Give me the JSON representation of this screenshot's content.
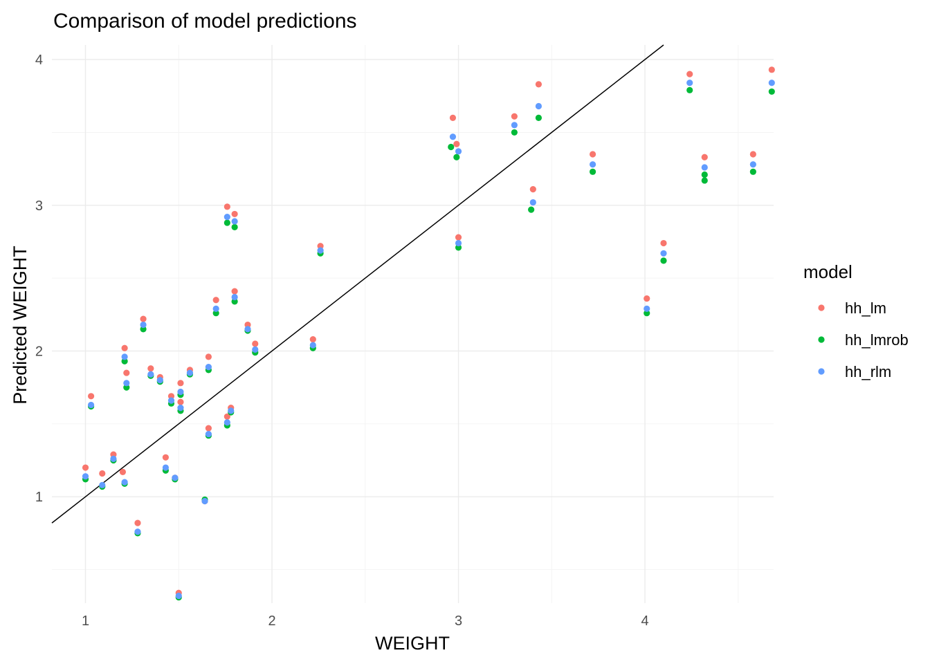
{
  "chart_data": {
    "type": "scatter",
    "title": "Comparison of model predictions",
    "xlabel": "WEIGHT",
    "ylabel": "Predicted WEIGHT",
    "xlim": [
      0.82,
      4.69
    ],
    "ylim": [
      0.27,
      4.1
    ],
    "x_ticks": [
      1,
      2,
      3,
      4
    ],
    "y_ticks": [
      1,
      2,
      3,
      4
    ],
    "grid": true,
    "legend": {
      "title": "model",
      "position": "right"
    },
    "reference_line": {
      "type": "abline",
      "intercept": 0,
      "slope": 1,
      "color": "#000000"
    },
    "series": [
      {
        "name": "hh_lm",
        "color": "#F8766D",
        "points": [
          [
            1.0,
            1.2
          ],
          [
            1.03,
            1.69
          ],
          [
            1.09,
            1.16
          ],
          [
            1.15,
            1.29
          ],
          [
            1.2,
            1.17
          ],
          [
            1.21,
            2.02
          ],
          [
            1.22,
            1.85
          ],
          [
            1.28,
            0.82
          ],
          [
            1.31,
            2.22
          ],
          [
            1.35,
            1.88
          ],
          [
            1.4,
            1.82
          ],
          [
            1.43,
            1.27
          ],
          [
            1.46,
            1.69
          ],
          [
            1.48,
            1.13
          ],
          [
            1.5,
            0.34
          ],
          [
            1.51,
            1.78
          ],
          [
            1.51,
            1.65
          ],
          [
            1.56,
            1.87
          ],
          [
            1.64,
            0.97
          ],
          [
            1.66,
            1.96
          ],
          [
            1.66,
            1.47
          ],
          [
            1.7,
            2.35
          ],
          [
            1.76,
            2.99
          ],
          [
            1.76,
            1.55
          ],
          [
            1.78,
            1.61
          ],
          [
            1.8,
            2.94
          ],
          [
            1.8,
            2.41
          ],
          [
            1.87,
            2.18
          ],
          [
            1.91,
            2.05
          ],
          [
            2.22,
            2.08
          ],
          [
            2.26,
            2.72
          ],
          [
            2.97,
            3.6
          ],
          [
            2.99,
            3.42
          ],
          [
            3.0,
            2.78
          ],
          [
            3.3,
            3.61
          ],
          [
            3.4,
            3.11
          ],
          [
            3.43,
            3.83
          ],
          [
            3.72,
            3.35
          ],
          [
            4.01,
            2.36
          ],
          [
            4.1,
            2.74
          ],
          [
            4.24,
            3.9
          ],
          [
            4.32,
            3.33
          ],
          [
            4.58,
            3.35
          ],
          [
            4.68,
            3.93
          ]
        ]
      },
      {
        "name": "hh_lmrob",
        "color": "#00BA38",
        "points": [
          [
            1.0,
            1.12
          ],
          [
            1.03,
            1.62
          ],
          [
            1.09,
            1.07
          ],
          [
            1.15,
            1.25
          ],
          [
            1.21,
            1.09
          ],
          [
            1.21,
            1.93
          ],
          [
            1.22,
            1.75
          ],
          [
            1.28,
            0.75
          ],
          [
            1.31,
            2.15
          ],
          [
            1.35,
            1.83
          ],
          [
            1.4,
            1.79
          ],
          [
            1.43,
            1.18
          ],
          [
            1.46,
            1.64
          ],
          [
            1.48,
            1.12
          ],
          [
            1.5,
            0.31
          ],
          [
            1.51,
            1.7
          ],
          [
            1.51,
            1.59
          ],
          [
            1.56,
            1.84
          ],
          [
            1.64,
            0.98
          ],
          [
            1.66,
            1.87
          ],
          [
            1.66,
            1.42
          ],
          [
            1.7,
            2.26
          ],
          [
            1.76,
            2.88
          ],
          [
            1.76,
            1.49
          ],
          [
            1.78,
            1.58
          ],
          [
            1.8,
            2.85
          ],
          [
            1.8,
            2.34
          ],
          [
            1.87,
            2.14
          ],
          [
            1.91,
            1.99
          ],
          [
            2.22,
            2.02
          ],
          [
            2.26,
            2.67
          ],
          [
            2.96,
            3.4
          ],
          [
            2.99,
            3.33
          ],
          [
            3.0,
            2.71
          ],
          [
            3.3,
            3.5
          ],
          [
            3.39,
            2.97
          ],
          [
            3.43,
            3.6
          ],
          [
            3.72,
            3.23
          ],
          [
            4.01,
            2.26
          ],
          [
            4.1,
            2.62
          ],
          [
            4.24,
            3.79
          ],
          [
            4.32,
            3.21
          ],
          [
            4.32,
            3.17
          ],
          [
            4.58,
            3.23
          ],
          [
            4.68,
            3.78
          ]
        ]
      },
      {
        "name": "hh_rlm",
        "color": "#619CFF",
        "points": [
          [
            1.0,
            1.14
          ],
          [
            1.03,
            1.63
          ],
          [
            1.09,
            1.08
          ],
          [
            1.15,
            1.26
          ],
          [
            1.21,
            1.1
          ],
          [
            1.21,
            1.96
          ],
          [
            1.22,
            1.78
          ],
          [
            1.28,
            0.76
          ],
          [
            1.31,
            2.18
          ],
          [
            1.35,
            1.84
          ],
          [
            1.4,
            1.8
          ],
          [
            1.43,
            1.2
          ],
          [
            1.46,
            1.66
          ],
          [
            1.48,
            1.13
          ],
          [
            1.5,
            0.32
          ],
          [
            1.51,
            1.72
          ],
          [
            1.51,
            1.61
          ],
          [
            1.56,
            1.85
          ],
          [
            1.64,
            0.97
          ],
          [
            1.66,
            1.89
          ],
          [
            1.66,
            1.43
          ],
          [
            1.7,
            2.29
          ],
          [
            1.76,
            2.92
          ],
          [
            1.76,
            1.51
          ],
          [
            1.78,
            1.59
          ],
          [
            1.8,
            2.89
          ],
          [
            1.8,
            2.37
          ],
          [
            1.87,
            2.15
          ],
          [
            1.91,
            2.01
          ],
          [
            2.22,
            2.04
          ],
          [
            2.26,
            2.69
          ],
          [
            2.97,
            3.47
          ],
          [
            3.0,
            3.37
          ],
          [
            3.0,
            2.74
          ],
          [
            3.3,
            3.55
          ],
          [
            3.4,
            3.02
          ],
          [
            3.43,
            3.68
          ],
          [
            3.72,
            3.28
          ],
          [
            4.01,
            2.29
          ],
          [
            4.1,
            2.67
          ],
          [
            4.24,
            3.84
          ],
          [
            4.32,
            3.26
          ],
          [
            4.58,
            3.28
          ],
          [
            4.68,
            3.84
          ]
        ]
      }
    ]
  }
}
